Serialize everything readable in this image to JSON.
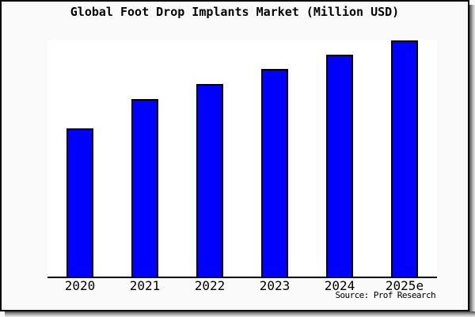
{
  "frame": {
    "canvas_bg": "#fafafa",
    "plot_bg": "#ffffff",
    "border_color": "#000000",
    "shadow_color": "#4d4d4d"
  },
  "chart_data": {
    "type": "bar",
    "title": "Global Foot Drop Implants Market (Million USD)",
    "unit": "Million USD",
    "categories": [
      "2020",
      "2021",
      "2022",
      "2023",
      "2024",
      "2025e"
    ],
    "values_pct_of_max": [
      62.8,
      75.2,
      81.5,
      87.9,
      94.0,
      100.0
    ],
    "values_note": "y-axis has no tick labels, gridlines or legend; values estimated as percent of tallest bar (2025e), which touches the plot top",
    "xlabel": "",
    "ylabel": "",
    "legend_position": "none",
    "grid": "off",
    "bar_color": "#0000ff",
    "bar_border_color": "#000000",
    "axis_color": "#000000",
    "source": "Source: Prof Research"
  }
}
